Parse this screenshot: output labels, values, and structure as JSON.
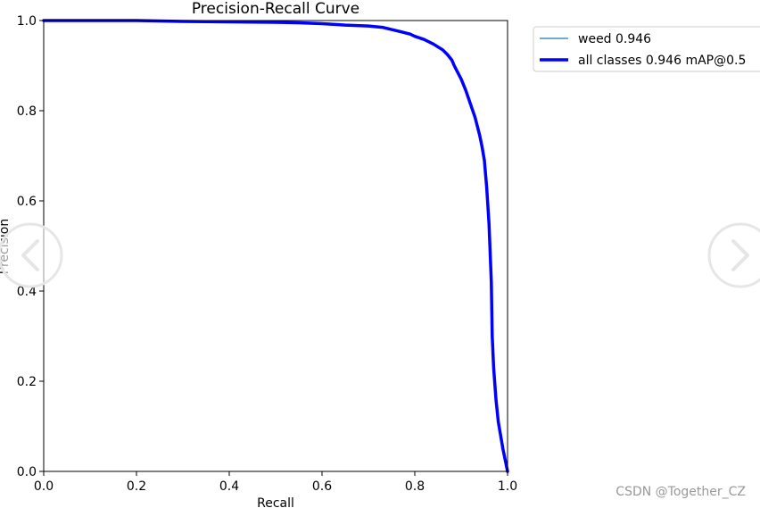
{
  "chart_data": {
    "type": "line",
    "title": "Precision-Recall Curve",
    "xlabel": "Recall",
    "ylabel": "Precision",
    "xlim": [
      0.0,
      1.0
    ],
    "ylim": [
      0.0,
      1.0
    ],
    "xticks": [
      "0.0",
      "0.2",
      "0.4",
      "0.6",
      "0.8",
      "1.0"
    ],
    "yticks": [
      "0.0",
      "0.2",
      "0.4",
      "0.6",
      "0.8",
      "1.0"
    ],
    "grid": false,
    "legend_position": "outside-top-right",
    "series": [
      {
        "name": "weed 0.946",
        "color": "#1f77b4",
        "x": [
          0.0,
          0.05,
          0.1,
          0.2,
          0.3,
          0.4,
          0.5,
          0.55,
          0.6,
          0.65,
          0.7,
          0.73,
          0.75,
          0.77,
          0.79,
          0.8,
          0.82,
          0.84,
          0.86,
          0.87,
          0.88,
          0.885,
          0.89,
          0.9,
          0.91,
          0.92,
          0.93,
          0.94,
          0.945,
          0.95,
          0.955,
          0.96,
          0.965,
          0.967,
          0.97,
          0.975,
          0.98,
          0.99,
          1.0
        ],
        "y": [
          1.0,
          1.0,
          1.0,
          1.0,
          0.998,
          0.997,
          0.996,
          0.995,
          0.993,
          0.99,
          0.988,
          0.985,
          0.98,
          0.975,
          0.97,
          0.965,
          0.958,
          0.948,
          0.935,
          0.925,
          0.912,
          0.9,
          0.89,
          0.87,
          0.845,
          0.815,
          0.785,
          0.745,
          0.72,
          0.69,
          0.63,
          0.55,
          0.42,
          0.3,
          0.23,
          0.16,
          0.11,
          0.05,
          0.0
        ]
      },
      {
        "name": "all classes 0.946 mAP@0.5",
        "color": "#0000ff",
        "x": [
          0.0,
          0.05,
          0.1,
          0.2,
          0.3,
          0.4,
          0.5,
          0.55,
          0.6,
          0.65,
          0.7,
          0.73,
          0.75,
          0.77,
          0.79,
          0.8,
          0.82,
          0.84,
          0.86,
          0.87,
          0.88,
          0.885,
          0.89,
          0.9,
          0.91,
          0.92,
          0.93,
          0.94,
          0.945,
          0.95,
          0.955,
          0.96,
          0.965,
          0.967,
          0.97,
          0.975,
          0.98,
          0.99,
          1.0
        ],
        "y": [
          1.0,
          1.0,
          1.0,
          1.0,
          0.998,
          0.997,
          0.996,
          0.995,
          0.993,
          0.99,
          0.988,
          0.985,
          0.98,
          0.975,
          0.97,
          0.965,
          0.958,
          0.948,
          0.935,
          0.925,
          0.912,
          0.9,
          0.89,
          0.87,
          0.845,
          0.815,
          0.785,
          0.745,
          0.72,
          0.69,
          0.63,
          0.55,
          0.42,
          0.3,
          0.23,
          0.16,
          0.11,
          0.05,
          0.0
        ]
      }
    ]
  },
  "nav": {
    "prev_icon": "chevron-left-icon",
    "next_icon": "chevron-right-icon"
  },
  "watermark": "CSDN @Together_CZ"
}
